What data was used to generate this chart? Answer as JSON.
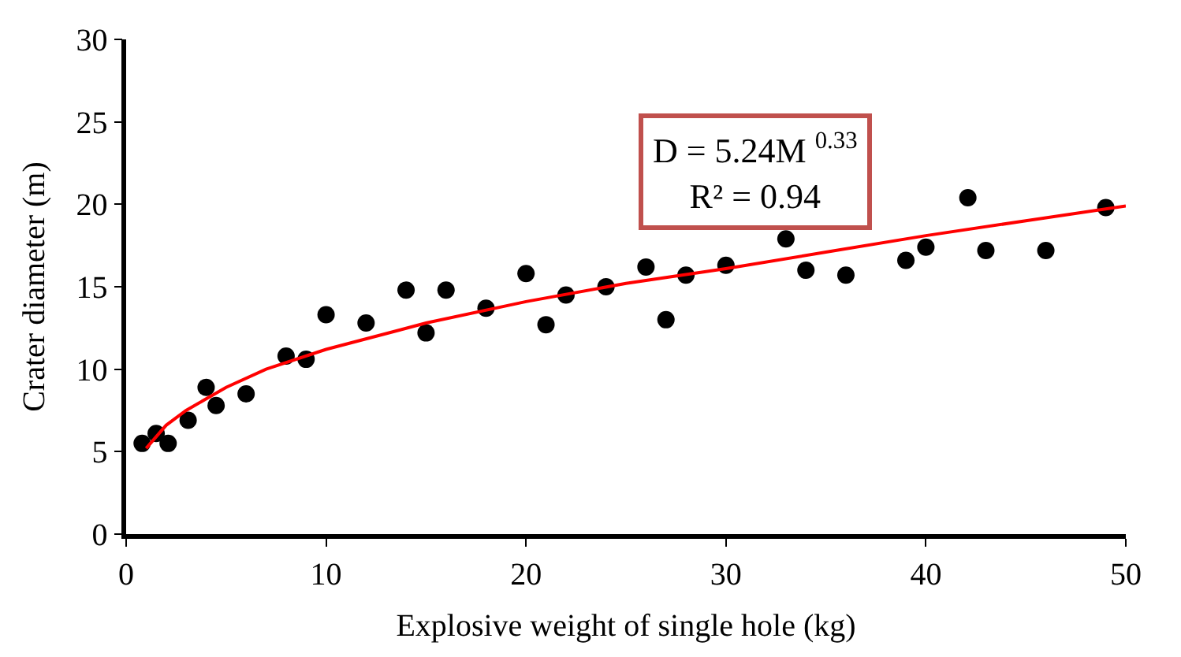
{
  "chart_data": {
    "type": "scatter",
    "xlabel": "Explosive weight of single hole (kg)",
    "ylabel": "Crater diameter (m)",
    "xlim": [
      0,
      50
    ],
    "xticks": [
      0,
      10,
      20,
      30,
      40,
      50
    ],
    "ylim": [
      0,
      30
    ],
    "yticks": [
      0,
      5,
      10,
      15,
      20,
      25,
      30
    ],
    "legend": false,
    "annotations": [
      "D = 5.24M $^{0.33}$",
      "R² = 0.94"
    ],
    "series": [
      {
        "marker": "circle",
        "color": "#000000",
        "x": [
          0.8,
          1.5,
          2.1,
          3.1,
          4.0,
          4.5,
          6.0,
          8.0,
          9.0,
          10.0,
          12.0,
          14.0,
          15.0,
          16.0,
          18.0,
          20.0,
          21.0,
          22.0,
          24.0,
          26.0,
          27.0,
          28.0,
          30.0,
          33.0,
          34.0,
          36.0,
          39.0,
          40.0,
          42.1,
          43.0,
          46.0,
          49.0
        ],
        "values": [
          5.5,
          6.1,
          5.5,
          6.9,
          8.9,
          7.8,
          8.5,
          10.8,
          10.6,
          13.3,
          12.8,
          14.8,
          12.2,
          14.8,
          13.7,
          15.8,
          12.7,
          14.5,
          15.0,
          16.2,
          13.0,
          15.7,
          16.3,
          17.9,
          16.0,
          15.7,
          16.6,
          17.4,
          20.4,
          17.2,
          17.2,
          19.8
        ]
      },
      {
        "type": "line",
        "marker": "none",
        "color": "#ff0000",
        "line_style": "solid",
        "x": [
          1,
          2,
          3,
          5,
          7,
          10,
          15,
          20,
          25,
          30,
          35,
          40,
          45,
          50
        ],
        "values": [
          5.2,
          6.6,
          7.5,
          8.9,
          10.0,
          11.2,
          12.8,
          14.1,
          15.2,
          16.1,
          17.1,
          18.1,
          19.0,
          19.9
        ]
      }
    ]
  }
}
